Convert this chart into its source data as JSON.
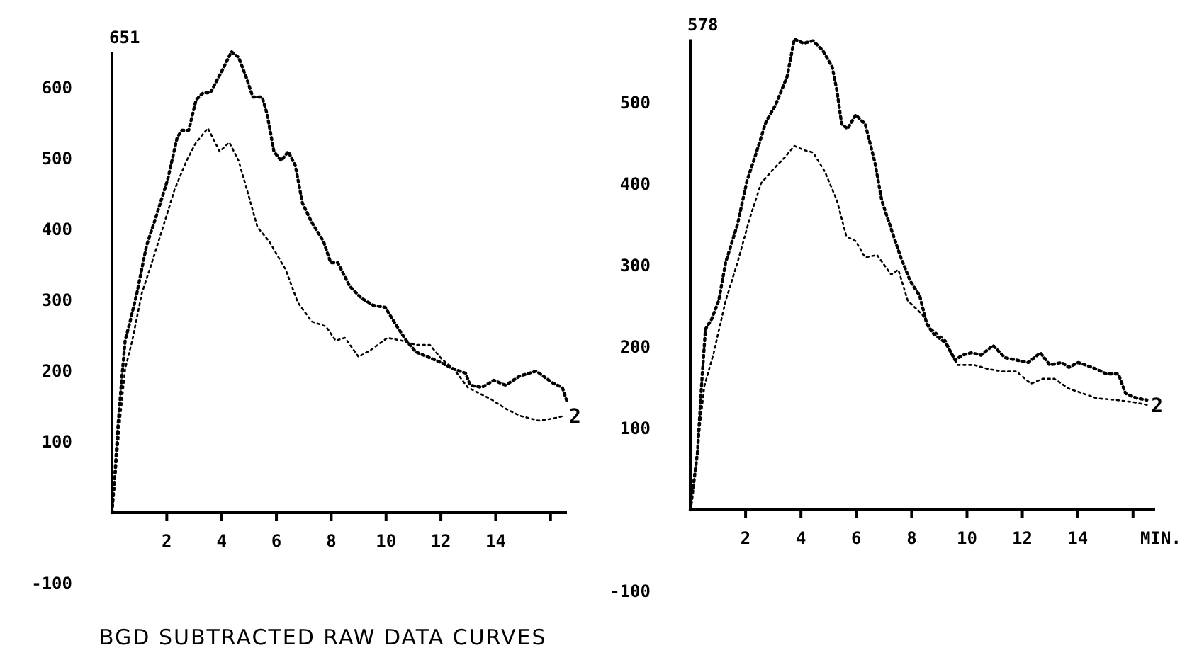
{
  "chart_data": [
    {
      "type": "line",
      "annotations": [
        "651",
        "BGD SUBTRACTED RAW DATA CURVES"
      ],
      "legend": false,
      "xlim": [
        0,
        16.6
      ],
      "ylim": [
        -100,
        651
      ],
      "xticks": [
        2,
        4,
        6,
        8,
        10,
        12,
        14,
        {
          "value": 16,
          "label": null
        }
      ],
      "yticks": [
        -100,
        100,
        200,
        300,
        400,
        500,
        600
      ],
      "line_style": "dotted",
      "marker": "none",
      "grid": false,
      "series": [
        {
          "color": "#000000",
          "x": [
            0,
            0.1,
            0.22,
            0.36,
            0.48,
            0.66,
            0.91,
            1.26,
            1.6,
            2.03,
            2.38,
            2.55,
            2.8,
            3.07,
            3.33,
            3.59,
            4.0,
            4.36,
            4.62,
            4.88,
            5.14,
            5.48,
            5.66,
            5.91,
            6.17,
            6.43,
            6.69,
            6.95,
            7.29,
            7.72,
            7.98,
            8.24,
            8.67,
            9.1,
            9.53,
            9.97,
            10.4,
            10.74,
            11.09,
            11.52,
            11.95,
            12.47,
            12.9,
            13.07,
            13.5,
            13.93,
            14.36,
            14.88,
            15.48,
            16.09,
            16.43,
            16.6
          ],
          "values": [
            0,
            50,
            123,
            190,
            243,
            270,
            310,
            377,
            417,
            470,
            530,
            540,
            540,
            583,
            593,
            593,
            623,
            651,
            643,
            617,
            587,
            587,
            563,
            510,
            497,
            510,
            490,
            437,
            410,
            383,
            353,
            353,
            320,
            303,
            293,
            290,
            263,
            243,
            227,
            220,
            213,
            203,
            197,
            180,
            177,
            187,
            180,
            193,
            200,
            183,
            177,
            157
          ]
        },
        {
          "name": "2",
          "color": "#000000",
          "x": [
            0,
            0.14,
            0.31,
            0.48,
            0.74,
            1.09,
            1.43,
            1.86,
            2.29,
            2.72,
            3.07,
            3.5,
            3.67,
            3.93,
            4.28,
            4.62,
            4.97,
            5.31,
            5.74,
            6.34,
            6.78,
            7.29,
            7.81,
            8.16,
            8.5,
            9.0,
            9.45,
            10.05,
            10.57,
            11.09,
            11.6,
            12.03,
            12.47,
            12.98,
            13.33,
            13.84,
            14.36,
            14.88,
            15.57,
            16.09,
            16.52
          ],
          "values": [
            0,
            57,
            137,
            203,
            243,
            310,
            350,
            403,
            457,
            497,
            523,
            543,
            530,
            510,
            523,
            497,
            450,
            403,
            383,
            343,
            297,
            270,
            263,
            243,
            247,
            220,
            230,
            247,
            243,
            237,
            237,
            217,
            203,
            177,
            170,
            160,
            147,
            137,
            130,
            133,
            137
          ]
        }
      ]
    },
    {
      "type": "line",
      "xlabel": "MIN.",
      "annotations": [
        "578"
      ],
      "legend": false,
      "xlim": [
        0,
        16.8
      ],
      "ylim": [
        -100,
        578
      ],
      "xticks": [
        2,
        4,
        6,
        8,
        10,
        12,
        14,
        {
          "value": 16,
          "label": null
        }
      ],
      "yticks": [
        -100,
        100,
        200,
        300,
        400,
        500
      ],
      "line_style": "dotted",
      "marker": "none",
      "grid": false,
      "series": [
        {
          "color": "#000000",
          "x": [
            0,
            0.09,
            0.26,
            0.43,
            0.55,
            0.77,
            1.03,
            1.28,
            1.71,
            2.05,
            2.39,
            2.74,
            3.08,
            3.5,
            3.76,
            4.1,
            4.44,
            4.79,
            5.13,
            5.3,
            5.47,
            5.68,
            5.98,
            6.32,
            6.67,
            6.92,
            7.26,
            7.61,
            7.95,
            8.29,
            8.55,
            8.8,
            9.23,
            9.57,
            9.83,
            10.17,
            10.51,
            10.94,
            11.37,
            11.79,
            12.22,
            12.65,
            12.99,
            13.42,
            13.68,
            14.02,
            14.53,
            15.04,
            15.47,
            15.73,
            16.15,
            16.5
          ],
          "values": [
            0,
            23,
            70,
            164,
            222,
            234,
            257,
            304,
            351,
            404,
            439,
            477,
            497,
            532,
            578,
            573,
            576,
            564,
            544,
            515,
            474,
            468,
            485,
            474,
            427,
            380,
            345,
            310,
            281,
            263,
            228,
            216,
            205,
            184,
            190,
            193,
            190,
            202,
            187,
            184,
            181,
            193,
            178,
            181,
            175,
            181,
            175,
            167,
            167,
            143,
            137,
            135
          ]
        },
        {
          "name": "2",
          "color": "#000000",
          "x": [
            0,
            0.26,
            0.51,
            0.85,
            1.28,
            1.71,
            2.14,
            2.56,
            2.99,
            3.42,
            3.76,
            4.1,
            4.44,
            4.87,
            5.3,
            5.64,
            5.98,
            6.32,
            6.75,
            7.26,
            7.52,
            7.86,
            8.38,
            8.72,
            9.23,
            9.66,
            10.26,
            10.77,
            11.28,
            11.79,
            12.31,
            12.74,
            13.16,
            13.68,
            14.19,
            14.7,
            15.38,
            16.07,
            16.5
          ],
          "values": [
            0,
            76,
            152,
            193,
            257,
            304,
            357,
            401,
            418,
            433,
            447,
            442,
            439,
            415,
            380,
            336,
            330,
            310,
            313,
            289,
            295,
            257,
            240,
            222,
            208,
            178,
            178,
            173,
            170,
            170,
            155,
            161,
            161,
            149,
            143,
            137,
            135,
            132,
            129
          ]
        }
      ]
    }
  ]
}
